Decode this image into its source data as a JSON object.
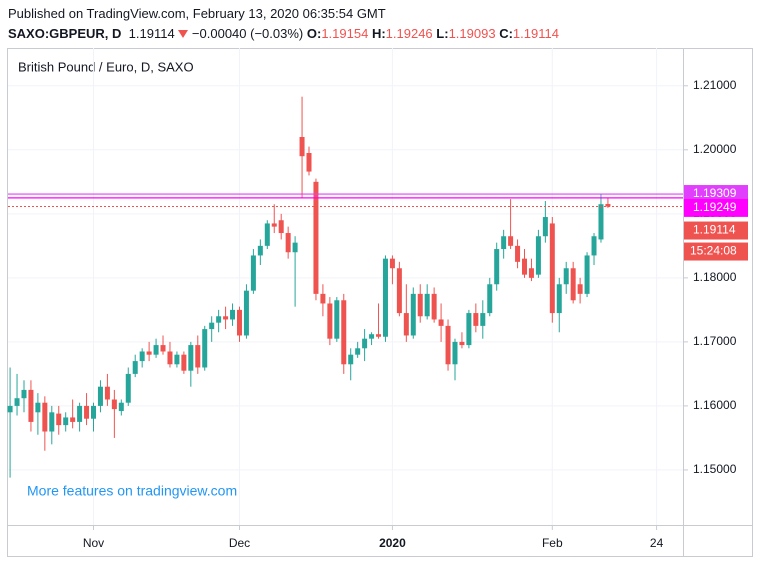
{
  "header": {
    "published": "Published on TradingView.com, February 13, 2020 06:35:54 GMT",
    "symbol": "SAXO:GBPEUR, D",
    "price": "1.19114",
    "change": "−0.00040 (−0.03%)",
    "open_label": "O:",
    "open": "1.19154",
    "high_label": "H:",
    "high": "1.19246",
    "low_label": "L:",
    "low": "1.19093",
    "close_label": "C:",
    "close": "1.19114"
  },
  "chart_data": {
    "type": "candlestick",
    "title": "British Pound / Euro, D, SAXO",
    "watermark": "More features on tradingview.com",
    "up_color": "#26a69a",
    "down_color": "#ef5350",
    "open": [
      1.159,
      1.16,
      1.1612,
      1.1625,
      1.159,
      1.1605,
      1.156,
      1.1588,
      1.157,
      1.1582,
      1.1575,
      1.16,
      1.158,
      1.16,
      1.163,
      1.161,
      1.1592,
      1.1605,
      1.165,
      1.167,
      1.1685,
      1.168,
      1.1695,
      1.1685,
      1.1665,
      1.168,
      1.1655,
      1.1695,
      1.166,
      1.172,
      1.173,
      1.174,
      1.1735,
      1.175,
      1.171,
      1.178,
      1.1835,
      1.185,
      1.1885,
      1.189,
      1.187,
      1.184,
      1.202,
      1.1995,
      1.195,
      1.1775,
      1.176,
      1.1705,
      1.1765,
      1.1665,
      1.168,
      1.169,
      1.1705,
      1.1712,
      1.1708,
      1.183,
      1.1815,
      1.1745,
      1.171,
      1.1775,
      1.174,
      1.1775,
      1.1735,
      1.1725,
      1.1665,
      1.17,
      1.1695,
      1.1745,
      1.1725,
      1.1745,
      1.179,
      1.1845,
      1.1865,
      1.185,
      1.183,
      1.1815,
      1.1805,
      1.1865,
      1.1885,
      1.1745,
      1.179,
      1.1815,
      1.179,
      1.1775,
      1.1835,
      1.186,
      1.19154
    ],
    "high": [
      1.166,
      1.165,
      1.164,
      1.164,
      1.162,
      1.1615,
      1.16,
      1.16,
      1.159,
      1.161,
      1.1605,
      1.162,
      1.1605,
      1.164,
      1.165,
      1.1625,
      1.161,
      1.166,
      1.168,
      1.169,
      1.17,
      1.1705,
      1.171,
      1.17,
      1.1685,
      1.1685,
      1.17,
      1.171,
      1.1725,
      1.174,
      1.175,
      1.1755,
      1.176,
      1.1755,
      1.179,
      1.1845,
      1.186,
      1.189,
      1.1915,
      1.19,
      1.188,
      1.1865,
      1.2083,
      1.2005,
      1.1955,
      1.179,
      1.177,
      1.177,
      1.1775,
      1.169,
      1.17,
      1.172,
      1.1715,
      1.176,
      1.1835,
      1.1835,
      1.1825,
      1.179,
      1.1785,
      1.179,
      1.179,
      1.1785,
      1.176,
      1.1735,
      1.1705,
      1.1715,
      1.175,
      1.176,
      1.1765,
      1.18,
      1.1855,
      1.1875,
      1.1923,
      1.186,
      1.1845,
      1.183,
      1.1875,
      1.192,
      1.1895,
      1.18,
      1.1825,
      1.1825,
      1.18,
      1.184,
      1.187,
      1.1931,
      1.19246
    ],
    "low": [
      1.1488,
      1.1585,
      1.159,
      1.156,
      1.1555,
      1.153,
      1.154,
      1.1555,
      1.156,
      1.1565,
      1.156,
      1.157,
      1.156,
      1.159,
      1.16,
      1.155,
      1.1585,
      1.16,
      1.1645,
      1.166,
      1.167,
      1.1675,
      1.168,
      1.166,
      1.166,
      1.165,
      1.163,
      1.165,
      1.1655,
      1.17,
      1.1715,
      1.172,
      1.1725,
      1.17,
      1.1705,
      1.1775,
      1.182,
      1.1845,
      1.187,
      1.186,
      1.183,
      1.1755,
      1.1925,
      1.196,
      1.1765,
      1.174,
      1.1695,
      1.17,
      1.165,
      1.164,
      1.1675,
      1.167,
      1.1695,
      1.1705,
      1.17,
      1.179,
      1.174,
      1.17,
      1.1705,
      1.173,
      1.1735,
      1.173,
      1.17,
      1.1655,
      1.164,
      1.169,
      1.169,
      1.1715,
      1.1705,
      1.174,
      1.178,
      1.183,
      1.1845,
      1.1815,
      1.18,
      1.1795,
      1.18,
      1.1855,
      1.173,
      1.1715,
      1.1775,
      1.176,
      1.176,
      1.177,
      1.182,
      1.1855,
      1.19093
    ],
    "close": [
      1.16,
      1.1612,
      1.1625,
      1.1575,
      1.1605,
      1.156,
      1.159,
      1.157,
      1.1582,
      1.1575,
      1.16,
      1.158,
      1.16,
      1.163,
      1.161,
      1.1595,
      1.1605,
      1.165,
      1.167,
      1.1685,
      1.168,
      1.1695,
      1.1685,
      1.1665,
      1.168,
      1.1655,
      1.1695,
      1.166,
      1.172,
      1.173,
      1.174,
      1.1735,
      1.175,
      1.171,
      1.178,
      1.1835,
      1.185,
      1.1885,
      1.188,
      1.187,
      1.184,
      1.1855,
      1.199,
      1.1966,
      1.1775,
      1.176,
      1.1705,
      1.1765,
      1.1665,
      1.168,
      1.169,
      1.1705,
      1.1712,
      1.1708,
      1.183,
      1.1815,
      1.1745,
      1.171,
      1.1775,
      1.174,
      1.1775,
      1.1735,
      1.1725,
      1.1665,
      1.17,
      1.1695,
      1.1745,
      1.1725,
      1.1745,
      1.179,
      1.1845,
      1.1865,
      1.185,
      1.1825,
      1.1805,
      1.18,
      1.1865,
      1.1895,
      1.1745,
      1.179,
      1.1815,
      1.1765,
      1.1775,
      1.1835,
      1.1865,
      1.1915,
      1.19114
    ],
    "ylim": [
      1.1414,
      1.2159
    ],
    "yticks": [
      {
        "value": 1.15,
        "label": "1.15000"
      },
      {
        "value": 1.16,
        "label": "1.16000"
      },
      {
        "value": 1.17,
        "label": "1.17000"
      },
      {
        "value": 1.18,
        "label": "1.18000"
      },
      {
        "value": 1.19,
        "label": "1.19000"
      },
      {
        "value": 1.2,
        "label": "1.20000"
      },
      {
        "value": 1.21,
        "label": "1.21000"
      }
    ],
    "xlim": [
      -0.3,
      96.8
    ],
    "xticks": [
      {
        "value": 12,
        "label": "Nov"
      },
      {
        "value": 33,
        "label": "Dec"
      },
      {
        "value": 55,
        "label": "2020"
      },
      {
        "value": 78,
        "label": "Feb"
      },
      {
        "value": 93,
        "label": "24"
      }
    ],
    "grid": true,
    "horizontal_lines": [
      {
        "value": 1.19309,
        "color": "#e040fb"
      },
      {
        "value": 1.19249,
        "color": "#ff00ff"
      }
    ],
    "countdown": "15:24:08"
  }
}
